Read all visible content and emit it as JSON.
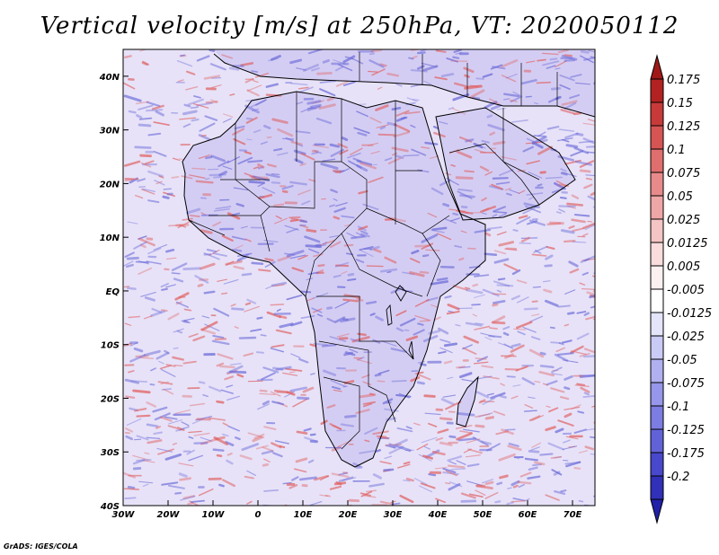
{
  "title": "Vertical velocity [m/s] at 250hPa, VT: 2020050112",
  "credit": "GrADS: IGES/COLA",
  "map": {
    "lon_range": [
      -30,
      75
    ],
    "lat_range": [
      -40,
      45
    ],
    "lon_ticks": [
      {
        "lon": -30,
        "label": "30W"
      },
      {
        "lon": -20,
        "label": "20W"
      },
      {
        "lon": -10,
        "label": "10W"
      },
      {
        "lon": 0,
        "label": "0"
      },
      {
        "lon": 10,
        "label": "10E"
      },
      {
        "lon": 20,
        "label": "20E"
      },
      {
        "lon": 30,
        "label": "30E"
      },
      {
        "lon": 40,
        "label": "40E"
      },
      {
        "lon": 50,
        "label": "50E"
      },
      {
        "lon": 60,
        "label": "60E"
      },
      {
        "lon": 70,
        "label": "70E"
      }
    ],
    "lat_ticks": [
      {
        "lat": 40,
        "label": "40N"
      },
      {
        "lat": 30,
        "label": "30N"
      },
      {
        "lat": 20,
        "label": "20N"
      },
      {
        "lat": 10,
        "label": "10N"
      },
      {
        "lat": 0,
        "label": "EQ"
      },
      {
        "lat": -10,
        "label": "10S"
      },
      {
        "lat": -20,
        "label": "20S"
      },
      {
        "lat": -30,
        "label": "30S"
      },
      {
        "lat": -40,
        "label": "40S"
      }
    ]
  },
  "colorbar": {
    "levels": [
      {
        "label": "0.175",
        "color": "#b22222"
      },
      {
        "label": "0.15",
        "color": "#c73a3a"
      },
      {
        "label": "0.125",
        "color": "#d65454"
      },
      {
        "label": "0.1",
        "color": "#e06e6e"
      },
      {
        "label": "0.075",
        "color": "#e88a8a"
      },
      {
        "label": "0.05",
        "color": "#efa6a6"
      },
      {
        "label": "0.025",
        "color": "#f5c4c4"
      },
      {
        "label": "0.0125",
        "color": "#fadcdc"
      },
      {
        "label": "0.005",
        "color": "#fdf0f0"
      },
      {
        "label": "-0.005",
        "color": "#ffffff"
      },
      {
        "label": "-0.0125",
        "color": "#e4e4fb"
      },
      {
        "label": "-0.025",
        "color": "#cacaf6"
      },
      {
        "label": "-0.05",
        "color": "#b0b0f0"
      },
      {
        "label": "-0.075",
        "color": "#9696ea"
      },
      {
        "label": "-0.1",
        "color": "#7c7ce2"
      },
      {
        "label": "-0.125",
        "color": "#6262d8"
      },
      {
        "label": "-0.175",
        "color": "#4848cc"
      },
      {
        "label": "-0.2",
        "color": "#3030b8"
      }
    ],
    "top_arrow_color": "#a01818",
    "bottom_arrow_color": "#2020a8"
  },
  "regions": {
    "land_fill": "#d4cdf3",
    "ocean_fill": "#e7e2f8",
    "updraft_color": "#e06060",
    "downdraft_color": "#6a6ad8"
  }
}
